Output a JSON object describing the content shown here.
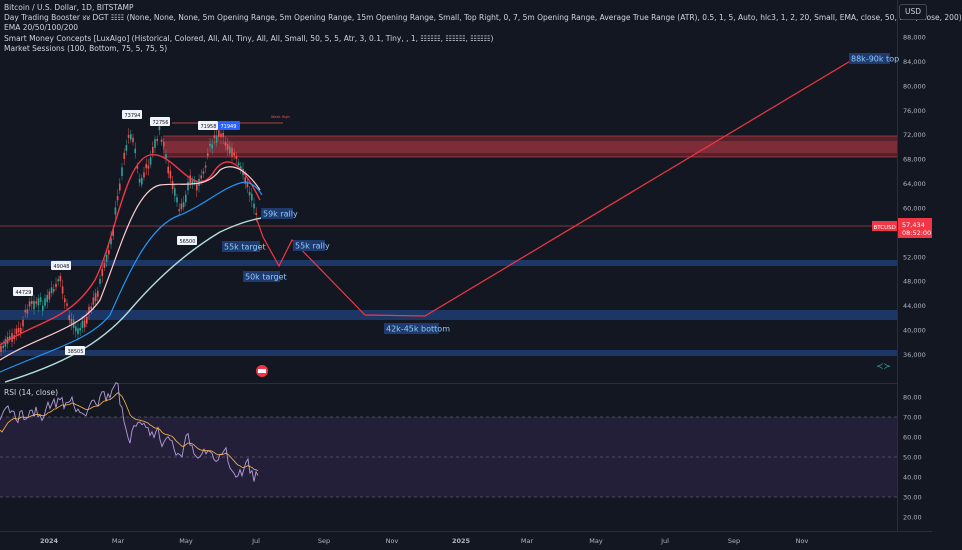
{
  "legend": {
    "title": "Bitcoin / U.S. Dollar, 1D, BITSTAMP",
    "indicators": [
      "Day Trading Booster ४४ DGT ☷☷ (None, None, None, 5m Opening Range, 5m Opening Range, 15m Opening Range, Small, Top Right, 0, 7, 5m Opening Range, Average True Range (ATR), 0.5, 1, 5, Auto, hlc3, 1, 2, 20, Small, EMA, close, 50, EMA, close, 200)",
      "EMA 20/50/100/200",
      "Smart Money Concepts [LuxAlgo] (Historical, Colored, All, All, Tiny, All, All, Small, 50, 5, 5, Atr, 3, 0.1, Tiny, , 1, ☷☷☷, ☷☷☷, ☷☷☷)",
      "Market Sessions (100, Bottom, 75, 5, 75, 5)"
    ],
    "rsi": "RSI (14, close)"
  },
  "currency_button": "USD",
  "price_axis": {
    "ticks": [
      "88,000",
      "84,000",
      "80,000",
      "76,000",
      "72,000",
      "68,000",
      "64,000",
      "60,000",
      "56,000",
      "52,000",
      "48,000",
      "44,000",
      "40,000",
      "36,000"
    ],
    "last_price": "57,434",
    "countdown": "08:52:00",
    "symbol_tag": "BTCUSD"
  },
  "rsi_axis": {
    "ticks": [
      "80.00",
      "70.00",
      "60.00",
      "50.00",
      "40.00",
      "30.00",
      "20.00"
    ]
  },
  "time_axis": {
    "labels": [
      "2024",
      "Mar",
      "May",
      "Jul",
      "Sep",
      "Nov",
      "2025",
      "Mar",
      "May",
      "Jul",
      "Sep",
      "Nov"
    ]
  },
  "chart_labels": {
    "top_pivots": [
      "73794",
      "72756",
      "71958",
      "71949"
    ],
    "low_pivots": [
      "56500",
      "38505"
    ],
    "left_pivots": [
      "44729",
      "49048"
    ],
    "rally_59k": "59k rally",
    "target_55k": "55k target",
    "rally_55k": "55k rally",
    "target_50k": "50k target",
    "bottom": "42k-45k bottom",
    "top": "88k-90k top",
    "weak_high": "Weak High"
  },
  "colors": {
    "background": "#131722",
    "candle_up": "#26a69a",
    "candle_down": "#ef5350",
    "path_line": "#f23645",
    "label_blue": "#2962ff",
    "ema20": "#f23645",
    "ema50": "#ffcdd2",
    "ema100": "#2196f3",
    "ema200": "#b2dfdb",
    "rsi_line": "#b39ddb"
  }
}
